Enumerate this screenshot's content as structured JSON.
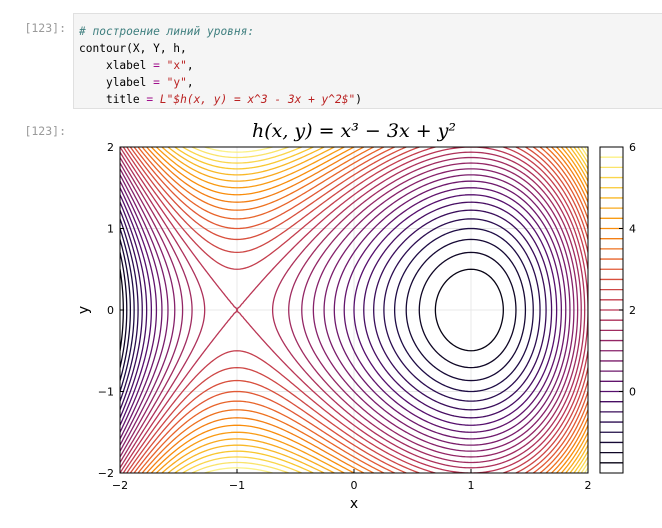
{
  "notebook": {
    "input_prompt": "[123]:",
    "output_prompt": "[123]:",
    "code": {
      "comment": "# построение линий уровня:",
      "call": "contour(X, Y, h,",
      "xlabel_kw": "xlabel",
      "xlabel_val": "\"x\"",
      "ylabel_kw": "ylabel",
      "ylabel_val": "\"y\"",
      "title_kw": "title",
      "title_val": "L\"$h(x, y) = x^3 - 3x + y^2$\""
    }
  },
  "chart_data": {
    "type": "contour",
    "function": "h(x, y) = x^3 - 3x + y^2",
    "title": "h(x, y) = x³ − 3x + y²",
    "xlabel": "x",
    "ylabel": "y",
    "xlim": [
      -2,
      2
    ],
    "ylim": [
      -2,
      2
    ],
    "xticks": [
      -2,
      -1,
      0,
      1,
      2
    ],
    "yticks": [
      -2,
      -1,
      0,
      1,
      2
    ],
    "xtick_labels": [
      "−2",
      "−1",
      "0",
      "1",
      "2"
    ],
    "ytick_labels": [
      "−2",
      "−1",
      "0",
      "1",
      "2"
    ],
    "levels": [
      -1.75,
      -1.5,
      -1.25,
      -1.0,
      -0.75,
      -0.5,
      -0.25,
      0.0,
      0.25,
      0.5,
      0.75,
      1.0,
      1.25,
      1.5,
      1.75,
      2.0,
      2.25,
      2.5,
      2.75,
      3.0,
      3.25,
      3.5,
      3.75,
      4.0,
      4.25,
      4.5,
      4.75,
      5.0,
      5.25,
      5.5,
      5.75
    ],
    "colorbar": {
      "range": [
        -2,
        6
      ],
      "ticks": [
        0,
        2,
        4,
        6
      ],
      "tick_labels": [
        "0",
        "2",
        "4",
        "6"
      ],
      "colormap": "inferno"
    },
    "grid": true,
    "legend": "none"
  }
}
